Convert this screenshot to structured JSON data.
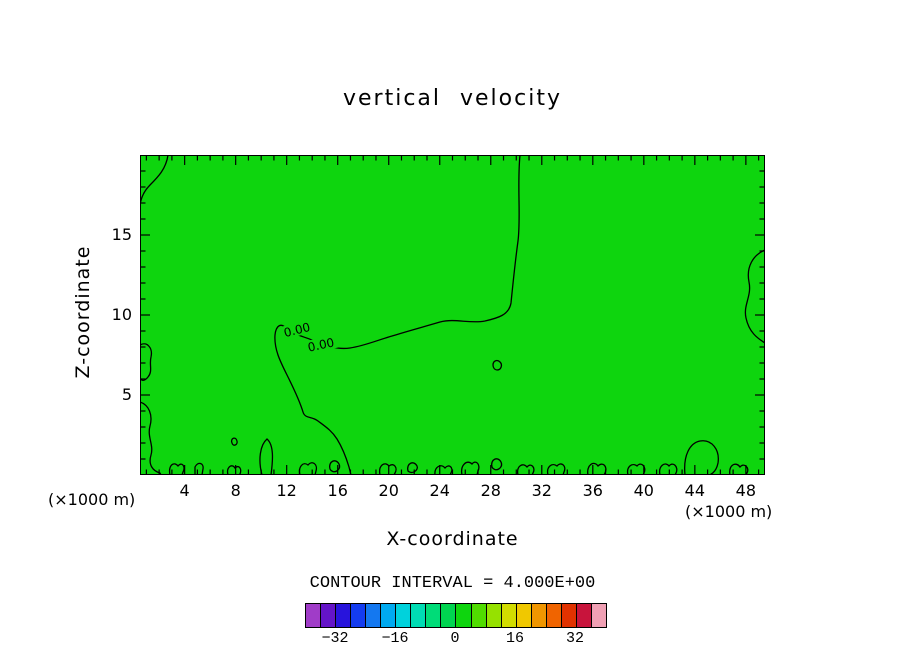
{
  "chart": {
    "title": "vertical velocity",
    "xlabel": "X-coordinate",
    "ylabel": "Z-coordinate",
    "x_unit_left": "(×1000 m)",
    "x_unit_right": "(×1000 m)",
    "contour_interval_text": "CONTOUR INTERVAL = 4.000E+00"
  },
  "chart_data": {
    "type": "heatmap",
    "subtype": "filled-contour-plot",
    "title": "vertical velocity",
    "xlabel": "X-coordinate",
    "ylabel": "Z-coordinate",
    "x_unit": "(×1000 m)",
    "xlim": [
      0.5,
      49.5
    ],
    "ylim": [
      0,
      20
    ],
    "xticks": [
      4,
      8,
      12,
      16,
      20,
      24,
      28,
      32,
      36,
      40,
      44,
      48
    ],
    "yticks": [
      5,
      10,
      15
    ],
    "contour_interval": 4.0,
    "contour_level_shown": 0.0,
    "contour_label": "0.00",
    "fill_color": "#0ED50E",
    "grid": false,
    "legend_position": "bottom-colorbar",
    "colorbar": {
      "min": -40,
      "max": 40,
      "step": 4,
      "tick_values": [
        -32,
        -16,
        0,
        16,
        32
      ],
      "tick_labels": [
        "−32",
        "−16",
        "0",
        "16",
        "32"
      ],
      "colors": [
        "#A03CC8",
        "#6414C8",
        "#2814DC",
        "#143CF0",
        "#1478F0",
        "#00AAF0",
        "#00D2DC",
        "#00DCB4",
        "#00DC78",
        "#00D450",
        "#0ED50E",
        "#50DC00",
        "#96E100",
        "#D2DC00",
        "#F0C800",
        "#F09600",
        "#F06400",
        "#E13200",
        "#C8143C",
        "#F0A0B4"
      ]
    },
    "contour_label_positions": [
      {
        "x": 157,
        "y": 175,
        "rot": -14
      },
      {
        "x": 181,
        "y": 190,
        "rot": -12
      }
    ],
    "zero_contour_paths": [
      "M380,0 C377,30 381,62 378,86 C375,108 373,128 371,148 C369,160 358,163 345,166 C330,169 315,163 300,167 C283,172 268,176 252,181 C238,185 224,191 210,193 C196,195 184,190 172,185 C162,181 152,179 146,173 C141,168 136,170 135,180 C134,194 140,206 147,220 C154,234 160,247 163,257 C165,264 172,261 178,266 C186,272 192,276 197,284 C202,292 206,302 209,312 L211,320",
      "M28,0 C26,14 18,22 10,30 C4,36 1,43 0,50",
      "M625,95 C613,100 606,112 609,127 C612,141 603,150 606,163 C609,177 617,183 625,188",
      "M0,190 C7,186 13,193 11,202 C9,210 13,216 8,222 C4,227 1,226 0,222 Z",
      "M0,247 C9,250 13,260 10,271 C7,282 14,290 11,300 C8,310 13,316 20,318 L21,320",
      "M353,210 C353,206 357,204 360,207 C363,210 361,215 357,215 C355,215 353,213 353,210 Z",
      "M30,320 C28,310 34,306 38,311 C42,306 46,312 43,317 L42,320 Z",
      "M55,320 L55,312 C58,306 64,308 63,314 L62,320 Z",
      "M88,320 C86,312 92,308 95,313 C99,309 102,314 100,319 L99,320 Z",
      "M92,288 C90,283 96,281 97,286 C98,290 93,292 92,288 Z",
      "M122,320 C118,305 120,290 127,284 C134,290 133,305 131,320 Z",
      "M160,320 C158,312 163,306 168,310 C172,305 178,309 176,316 L175,320 Z",
      "M190,314 C188,306 196,303 199,309 C202,315 193,320 190,314 Z",
      "M240,320 C238,310 245,306 249,311 C254,307 258,313 255,318 L254,320 Z",
      "M268,316 C266,308 274,305 277,311 C279,315 272,320 268,316 Z",
      "M295,320 C294,312 301,308 305,313 C309,308 314,313 311,318 L310,320 Z",
      "M322,320 C320,310 327,304 332,309 C336,304 341,310 338,316 L337,320 Z",
      "M352,312 C350,304 358,301 361,307 C364,313 355,318 352,312 Z",
      "M378,320 C376,311 383,307 387,312 C391,307 396,313 393,318 L392,320 Z",
      "M408,320 C406,312 412,307 417,311 C421,306 427,311 424,317 L423,320 Z",
      "M448,320 C446,310 454,305 458,311 C463,306 468,312 465,318 L464,320 Z",
      "M488,320 C486,312 492,307 497,311 C501,306 507,312 504,318 L503,320 Z",
      "M520,320 C518,311 525,306 529,311 C533,306 539,312 536,318 L535,320 Z",
      "M545,320 C543,300 550,288 560,286 C572,284 580,295 578,308 C576,318 570,320 568,320 Z",
      "M590,320 C588,310 596,306 600,312 C604,307 610,313 607,318 L606,320 Z"
    ]
  }
}
